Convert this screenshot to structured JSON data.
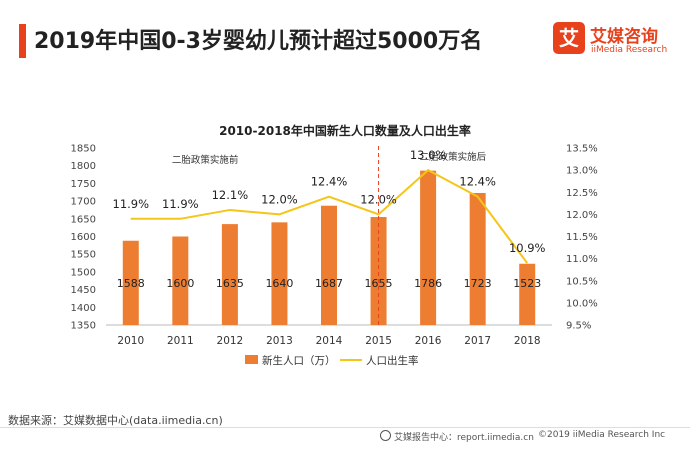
{
  "header": {
    "title": "2019年中国0-3岁婴幼儿预计超过5000万名",
    "logo_mark": "艾",
    "logo_cn": "艾媒咨询",
    "logo_en": "iiMedia Research"
  },
  "chart_data": {
    "type": "bar",
    "title": "2010-2018年中国新生人口数量及人口出生率",
    "categories": [
      "2010",
      "2011",
      "2012",
      "2013",
      "2014",
      "2015",
      "2016",
      "2017",
      "2018"
    ],
    "series": [
      {
        "name": "新生人口（万）",
        "type": "bar",
        "axis": "left",
        "color": "#ed7d31",
        "values": [
          1588,
          1600,
          1635,
          1640,
          1687,
          1655,
          1786,
          1723,
          1523
        ],
        "labels": [
          "1588",
          "1600",
          "1635",
          "1640",
          "1687",
          "1655",
          "1786",
          "1723",
          "1523"
        ]
      },
      {
        "name": "人口出生率",
        "type": "line",
        "axis": "right",
        "color": "#f5c518",
        "values": [
          11.9,
          11.9,
          12.1,
          12.0,
          12.4,
          12.0,
          13.0,
          12.4,
          10.9
        ],
        "labels": [
          "11.9%",
          "11.9%",
          "12.1%",
          "12.0%",
          "12.4%",
          "12.0%",
          "13.0%",
          "12.4%",
          "10.9%"
        ]
      }
    ],
    "y_left": {
      "min": 1350,
      "max": 1850,
      "ticks": [
        "1350",
        "1400",
        "1450",
        "1500",
        "1550",
        "1600",
        "1650",
        "1700",
        "1750",
        "1800",
        "1850"
      ]
    },
    "y_right": {
      "min": 9.5,
      "max": 13.5,
      "ticks": [
        "9.5%",
        "10.0%",
        "10.5%",
        "11.0%",
        "11.5%",
        "12.0%",
        "12.5%",
        "13.0%",
        "13.5%"
      ]
    },
    "annotations": [
      {
        "text": "二胎政策实施前"
      },
      {
        "text": "二胎政策实施后"
      }
    ],
    "divider_after_category": "2015",
    "legend_position": "bottom",
    "grid": false
  },
  "footer": {
    "source": "数据来源：艾媒数据中心(data.iimedia.cn)",
    "report": "艾媒报告中心：report.iimedia.cn",
    "copyright": "©2019  iiMedia Research  Inc"
  }
}
